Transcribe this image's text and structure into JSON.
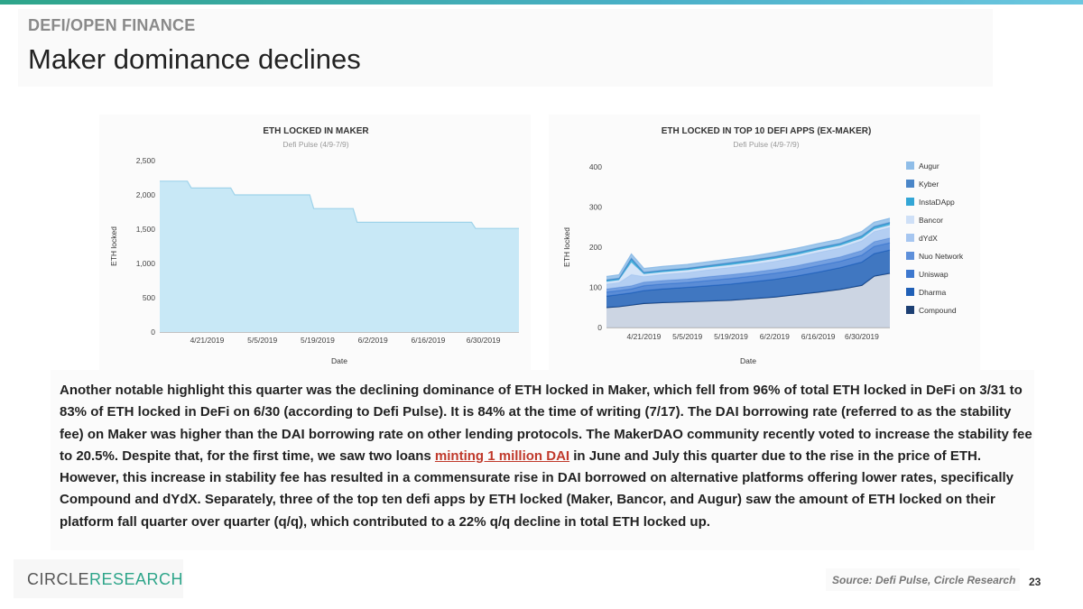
{
  "header": {
    "section_label": "DEFI/OPEN FINANCE",
    "title": "Maker dominance declines"
  },
  "chart_data": [
    {
      "type": "area",
      "title": "ETH LOCKED IN MAKER",
      "subtitle": "Defi Pulse (4/9-7/9)",
      "xlabel": "Date",
      "ylabel": "ETH locked",
      "ylim": [
        0,
        2500
      ],
      "yticks": [
        "0",
        "500",
        "1,000",
        "1,500",
        "2,000",
        "2,500"
      ],
      "xticks": [
        "4/21/2019",
        "5/5/2019",
        "5/19/2019",
        "6/2/2019",
        "6/16/2019",
        "6/30/2019"
      ],
      "grid": false,
      "color": "#c8e8f6",
      "x": [
        "4/9/2019",
        "4/16/2019",
        "4/17/2019",
        "4/27/2019",
        "4/28/2019",
        "5/17/2019",
        "5/18/2019",
        "5/28/2019",
        "5/29/2019",
        "6/27/2019",
        "6/28/2019",
        "7/9/2019"
      ],
      "series": [
        {
          "values": [
            2200,
            2200,
            2100,
            2100,
            2000,
            2000,
            1800,
            1800,
            1600,
            1600,
            1510,
            1510
          ]
        }
      ]
    },
    {
      "type": "area",
      "title": "ETH LOCKED IN TOP 10 DEFI APPS (EX-MAKER)",
      "subtitle": "Defi Pulse (4/9-7/9)",
      "xlabel": "Date",
      "ylabel": "ETH locked",
      "ylim": [
        0,
        400
      ],
      "yticks": [
        "0",
        "100",
        "200",
        "300",
        "400"
      ],
      "xticks": [
        "4/21/2019",
        "5/5/2019",
        "5/19/2019",
        "6/2/2019",
        "6/16/2019",
        "6/30/2019"
      ],
      "grid": false,
      "stacked": true,
      "legend_position": "right",
      "x": [
        "4/9",
        "4/13",
        "4/17",
        "4/21",
        "4/27",
        "5/5",
        "5/12",
        "5/19",
        "5/26",
        "6/2",
        "6/9",
        "6/16",
        "6/23",
        "6/30",
        "7/4",
        "7/9"
      ],
      "legend_order": [
        "Augur",
        "Kyber",
        "InstaDApp",
        "Bancor",
        "dYdX",
        "Nuo Network",
        "Uniswap",
        "Dharma",
        "Compound"
      ],
      "series": [
        {
          "name": "Compound",
          "color": "#1c3f73",
          "values": [
            50,
            52,
            56,
            60,
            62,
            64,
            66,
            68,
            72,
            76,
            82,
            88,
            95,
            105,
            128,
            135
          ]
        },
        {
          "name": "Dharma",
          "color": "#1f5fb6",
          "values": [
            28,
            30,
            30,
            32,
            34,
            36,
            38,
            40,
            42,
            44,
            46,
            50,
            54,
            58,
            56,
            58
          ]
        },
        {
          "name": "Uniswap",
          "color": "#3d78cf",
          "values": [
            10,
            10,
            10,
            12,
            12,
            12,
            13,
            14,
            14,
            15,
            15,
            16,
            16,
            17,
            18,
            18
          ]
        },
        {
          "name": "Nuo Network",
          "color": "#5d8fda",
          "values": [
            8,
            8,
            8,
            9,
            9,
            9,
            10,
            10,
            10,
            10,
            11,
            11,
            11,
            12,
            12,
            12
          ]
        },
        {
          "name": "dYdX",
          "color": "#a6c6f0",
          "values": [
            12,
            12,
            28,
            14,
            15,
            16,
            17,
            18,
            19,
            20,
            21,
            22,
            22,
            24,
            25,
            26
          ]
        },
        {
          "name": "Bancor",
          "color": "#cfe0f7",
          "values": [
            6,
            6,
            30,
            6,
            6,
            6,
            6,
            6,
            6,
            6,
            6,
            6,
            6,
            6,
            6,
            6
          ]
        },
        {
          "name": "InstaDApp",
          "color": "#33a6d6",
          "values": [
            3,
            3,
            8,
            3,
            3,
            3,
            3,
            4,
            4,
            4,
            4,
            4,
            4,
            5,
            5,
            5
          ]
        },
        {
          "name": "Kyber",
          "color": "#4a86c8",
          "values": [
            2,
            2,
            3,
            2,
            2,
            2,
            2,
            2,
            2,
            2,
            2,
            2,
            2,
            2,
            2,
            2
          ]
        },
        {
          "name": "Augur",
          "color": "#8fbde8",
          "values": [
            8,
            8,
            10,
            9,
            9,
            9,
            9,
            9,
            9,
            10,
            10,
            10,
            10,
            10,
            10,
            10
          ]
        }
      ]
    }
  ],
  "body": {
    "text_before_link": "Another notable highlight this quarter was the declining dominance of ETH locked in Maker, which fell from 96% of total ETH locked in DeFi on 3/31 to 83% of ETH locked in DeFi on 6/30 (according to Defi Pulse). It is 84% at the time of writing (7/17). The DAI borrowing rate (referred to as the stability fee) on Maker was higher than the DAI borrowing rate on other lending protocols. The MakerDAO community recently voted to increase the stability fee to 20.5%. Despite that, for the first time, we saw two loans ",
    "link_text": "minting 1 million DAI",
    "text_after_link": " in June and July this quarter due to the rise in the price of ETH. However, this increase in stability fee has resulted in a commensurate rise in DAI borrowed on alternative platforms offering lower rates, specifically Compound and dYdX. Separately, three of the top ten defi apps by ETH locked (Maker, Bancor, and Augur) saw the amount of ETH locked on their platform fall quarter over quarter (q/q), which contributed to a 22% q/q decline in total ETH locked up."
  },
  "footer": {
    "logo_part1": "CIRCLE",
    "logo_part2": "RESEARCH",
    "source": "Source: Defi Pulse, Circle Research",
    "page_number": "23"
  },
  "colors": {
    "accent": "#2ea58a",
    "link": "#c0392b"
  }
}
